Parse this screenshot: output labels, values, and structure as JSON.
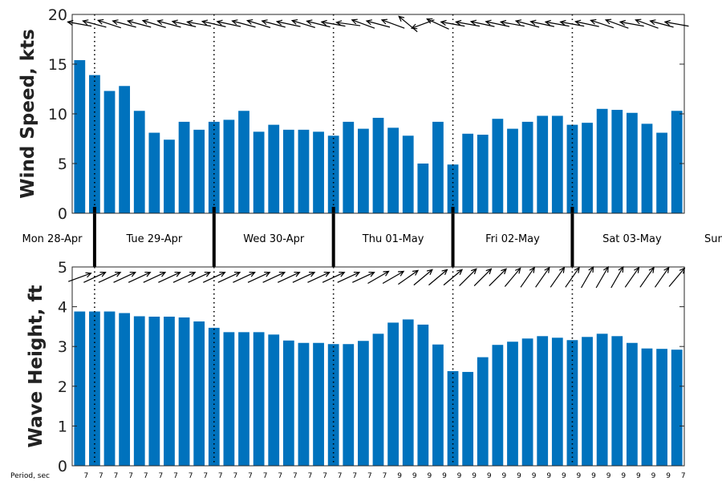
{
  "chart_data": [
    {
      "type": "bar",
      "ylabel": "Wind Speed, kts",
      "ylim": [
        0,
        20
      ],
      "yticks": [
        0,
        5,
        10,
        15,
        20
      ],
      "color": "#0072BD",
      "grid": false,
      "values": [
        15.4,
        13.9,
        12.3,
        12.8,
        10.3,
        8.1,
        7.4,
        9.2,
        8.4,
        9.2,
        9.4,
        10.3,
        8.2,
        8.9,
        8.4,
        8.4,
        8.2,
        7.8,
        9.2,
        8.5,
        9.6,
        8.6,
        7.8,
        5.0,
        9.2,
        4.9,
        8.0,
        7.9,
        9.5,
        8.5,
        9.2,
        9.8,
        9.8,
        8.9,
        9.1,
        10.5,
        10.4,
        10.1,
        9.0,
        8.1,
        10.3
      ],
      "direction_arrows": {
        "angles_deg": [
          190,
          195,
          198,
          195,
          195,
          197,
          195,
          193,
          190,
          193,
          192,
          195,
          197,
          195,
          192,
          197,
          194,
          190,
          188,
          200,
          195,
          200,
          220,
          160,
          205,
          190,
          190,
          192,
          192,
          190,
          195,
          192,
          190,
          190,
          192,
          198,
          200,
          190,
          200,
          195,
          190
        ]
      }
    },
    {
      "type": "bar",
      "ylabel": "Wave Height, ft",
      "ylim": [
        0,
        5
      ],
      "yticks": [
        0,
        1,
        2,
        3,
        4,
        5
      ],
      "color": "#0072BD",
      "grid": false,
      "values": [
        3.88,
        3.88,
        3.88,
        3.84,
        3.76,
        3.75,
        3.75,
        3.73,
        3.63,
        3.47,
        3.36,
        3.36,
        3.36,
        3.3,
        3.15,
        3.09,
        3.09,
        3.06,
        3.06,
        3.14,
        3.32,
        3.6,
        3.68,
        3.55,
        3.05,
        2.38,
        2.36,
        2.73,
        3.04,
        3.12,
        3.2,
        3.26,
        3.22,
        3.16,
        3.24,
        3.32,
        3.26,
        3.09,
        2.95,
        2.94,
        2.92
      ],
      "direction_arrows": {
        "angles_deg": [
          -20,
          -25,
          -25,
          -25,
          -25,
          -25,
          -25,
          -25,
          -25,
          -25,
          -25,
          -25,
          -25,
          -25,
          -25,
          -25,
          -25,
          -25,
          -25,
          -25,
          -30,
          -30,
          -35,
          -40,
          -40,
          -40,
          -45,
          -45,
          -45,
          -50,
          -55,
          -55,
          -55,
          -55,
          -60,
          -60,
          -60,
          -55,
          -55,
          -55,
          -50
        ]
      }
    }
  ],
  "day_labels": [
    "Mon 28-Apr",
    "Tue 29-Apr",
    "Wed 30-Apr",
    "Thu 01-May",
    "Fri 02-May",
    "Sat 03-May",
    "Sun"
  ],
  "period_label": "Period, sec",
  "periods": [
    7,
    7,
    7,
    7,
    7,
    7,
    7,
    7,
    7,
    7,
    7,
    7,
    7,
    7,
    7,
    7,
    7,
    7,
    7,
    7,
    7,
    9,
    9,
    9,
    9,
    9,
    9,
    9,
    9,
    9,
    9,
    9,
    9,
    9,
    9,
    9,
    9,
    9,
    9,
    9,
    7
  ]
}
